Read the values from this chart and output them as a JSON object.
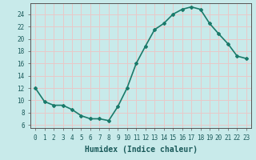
{
  "x": [
    0,
    1,
    2,
    3,
    4,
    5,
    6,
    7,
    8,
    9,
    10,
    11,
    12,
    13,
    14,
    15,
    16,
    17,
    18,
    19,
    20,
    21,
    22,
    23
  ],
  "y": [
    12,
    9.8,
    9.2,
    9.2,
    8.5,
    7.5,
    7.0,
    7.0,
    6.7,
    9.0,
    12.0,
    16.0,
    18.8,
    21.5,
    22.5,
    24.0,
    24.8,
    25.2,
    24.8,
    22.5,
    20.8,
    19.2,
    17.2,
    16.8
  ],
  "line_color": "#1a7a6a",
  "marker": "D",
  "marker_size": 2,
  "bg_color": "#c8eaea",
  "grid_color": "#e8c8c8",
  "xlabel": "Humidex (Indice chaleur)",
  "xlabel_fontsize": 7,
  "ylabel_ticks": [
    6,
    8,
    10,
    12,
    14,
    16,
    18,
    20,
    22,
    24
  ],
  "xlim": [
    -0.5,
    23.5
  ],
  "ylim": [
    5.5,
    25.8
  ],
  "xtick_labels": [
    "0",
    "1",
    "2",
    "3",
    "4",
    "5",
    "6",
    "7",
    "8",
    "9",
    "10",
    "11",
    "12",
    "13",
    "14",
    "15",
    "16",
    "17",
    "18",
    "19",
    "20",
    "21",
    "22",
    "23"
  ],
  "tick_fontsize": 5.5,
  "linewidth": 1.2
}
